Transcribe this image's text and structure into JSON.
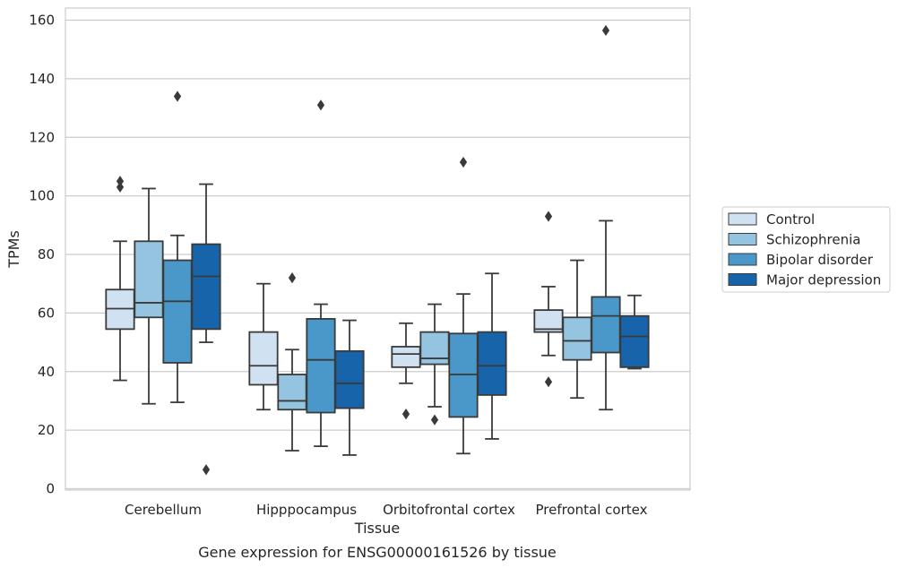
{
  "chart_data": {
    "type": "box",
    "xlabel": "Tissue",
    "ylabel": "TPMs",
    "caption": "Gene expression for ENSG00000161526 by tissue",
    "ylim": [
      0,
      165
    ],
    "yticks": [
      0,
      20,
      40,
      60,
      80,
      100,
      120,
      140,
      160
    ],
    "grid": "horizontal",
    "legend_position": "right",
    "categories": [
      "Cerebellum",
      "Hipppocampus",
      "Orbitofrontal cortex",
      "Prefrontal cortex"
    ],
    "series": [
      {
        "name": "Control",
        "color": "#d0e1f2",
        "boxes": [
          {
            "whisker_low": 37,
            "q1": 54.5,
            "median": 61.5,
            "q3": 68,
            "whisker_high": 84.5,
            "outliers": [
              103,
              105
            ]
          },
          {
            "whisker_low": 27,
            "q1": 35.5,
            "median": 42,
            "q3": 53.5,
            "whisker_high": 70,
            "outliers": []
          },
          {
            "whisker_low": 36,
            "q1": 41.5,
            "median": 46,
            "q3": 48.5,
            "whisker_high": 56.5,
            "outliers": [
              25.5
            ]
          },
          {
            "whisker_low": 45.5,
            "q1": 53.5,
            "median": 54.5,
            "q3": 61,
            "whisker_high": 69,
            "outliers": [
              36.5,
              93
            ]
          }
        ]
      },
      {
        "name": "Schizophrenia",
        "color": "#94c4df",
        "boxes": [
          {
            "whisker_low": 29,
            "q1": 58.5,
            "median": 63.5,
            "q3": 84.5,
            "whisker_high": 102.5,
            "outliers": []
          },
          {
            "whisker_low": 13,
            "q1": 27,
            "median": 30,
            "q3": 39,
            "whisker_high": 47.5,
            "outliers": [
              72
            ]
          },
          {
            "whisker_low": 28,
            "q1": 42.5,
            "median": 44.5,
            "q3": 53.5,
            "whisker_high": 63,
            "outliers": [
              23.5
            ]
          },
          {
            "whisker_low": 31,
            "q1": 44,
            "median": 50.5,
            "q3": 58.5,
            "whisker_high": 78,
            "outliers": []
          }
        ]
      },
      {
        "name": "Bipolar disorder",
        "color": "#4a98c9",
        "boxes": [
          {
            "whisker_low": 29.5,
            "q1": 43,
            "median": 64,
            "q3": 78,
            "whisker_high": 86.5,
            "outliers": [
              134
            ]
          },
          {
            "whisker_low": 14.5,
            "q1": 26,
            "median": 44,
            "q3": 58,
            "whisker_high": 63,
            "outliers": [
              131
            ]
          },
          {
            "whisker_low": 12,
            "q1": 24.5,
            "median": 39,
            "q3": 53,
            "whisker_high": 66.5,
            "outliers": [
              111.5
            ]
          },
          {
            "whisker_low": 27,
            "q1": 46.5,
            "median": 59,
            "q3": 65.5,
            "whisker_high": 91.5,
            "outliers": [
              156.5
            ]
          }
        ]
      },
      {
        "name": "Major depression",
        "color": "#1764ab",
        "boxes": [
          {
            "whisker_low": 50,
            "q1": 54.5,
            "median": 72.5,
            "q3": 83.5,
            "whisker_high": 104,
            "outliers": [
              6.5
            ]
          },
          {
            "whisker_low": 11.5,
            "q1": 27.5,
            "median": 36,
            "q3": 47,
            "whisker_high": 57.5,
            "outliers": []
          },
          {
            "whisker_low": 17,
            "q1": 32,
            "median": 42,
            "q3": 53.5,
            "whisker_high": 73.5,
            "outliers": []
          },
          {
            "whisker_low": 41,
            "q1": 41.5,
            "median": 52,
            "q3": 59,
            "whisker_high": 66,
            "outliers": []
          }
        ]
      }
    ]
  }
}
